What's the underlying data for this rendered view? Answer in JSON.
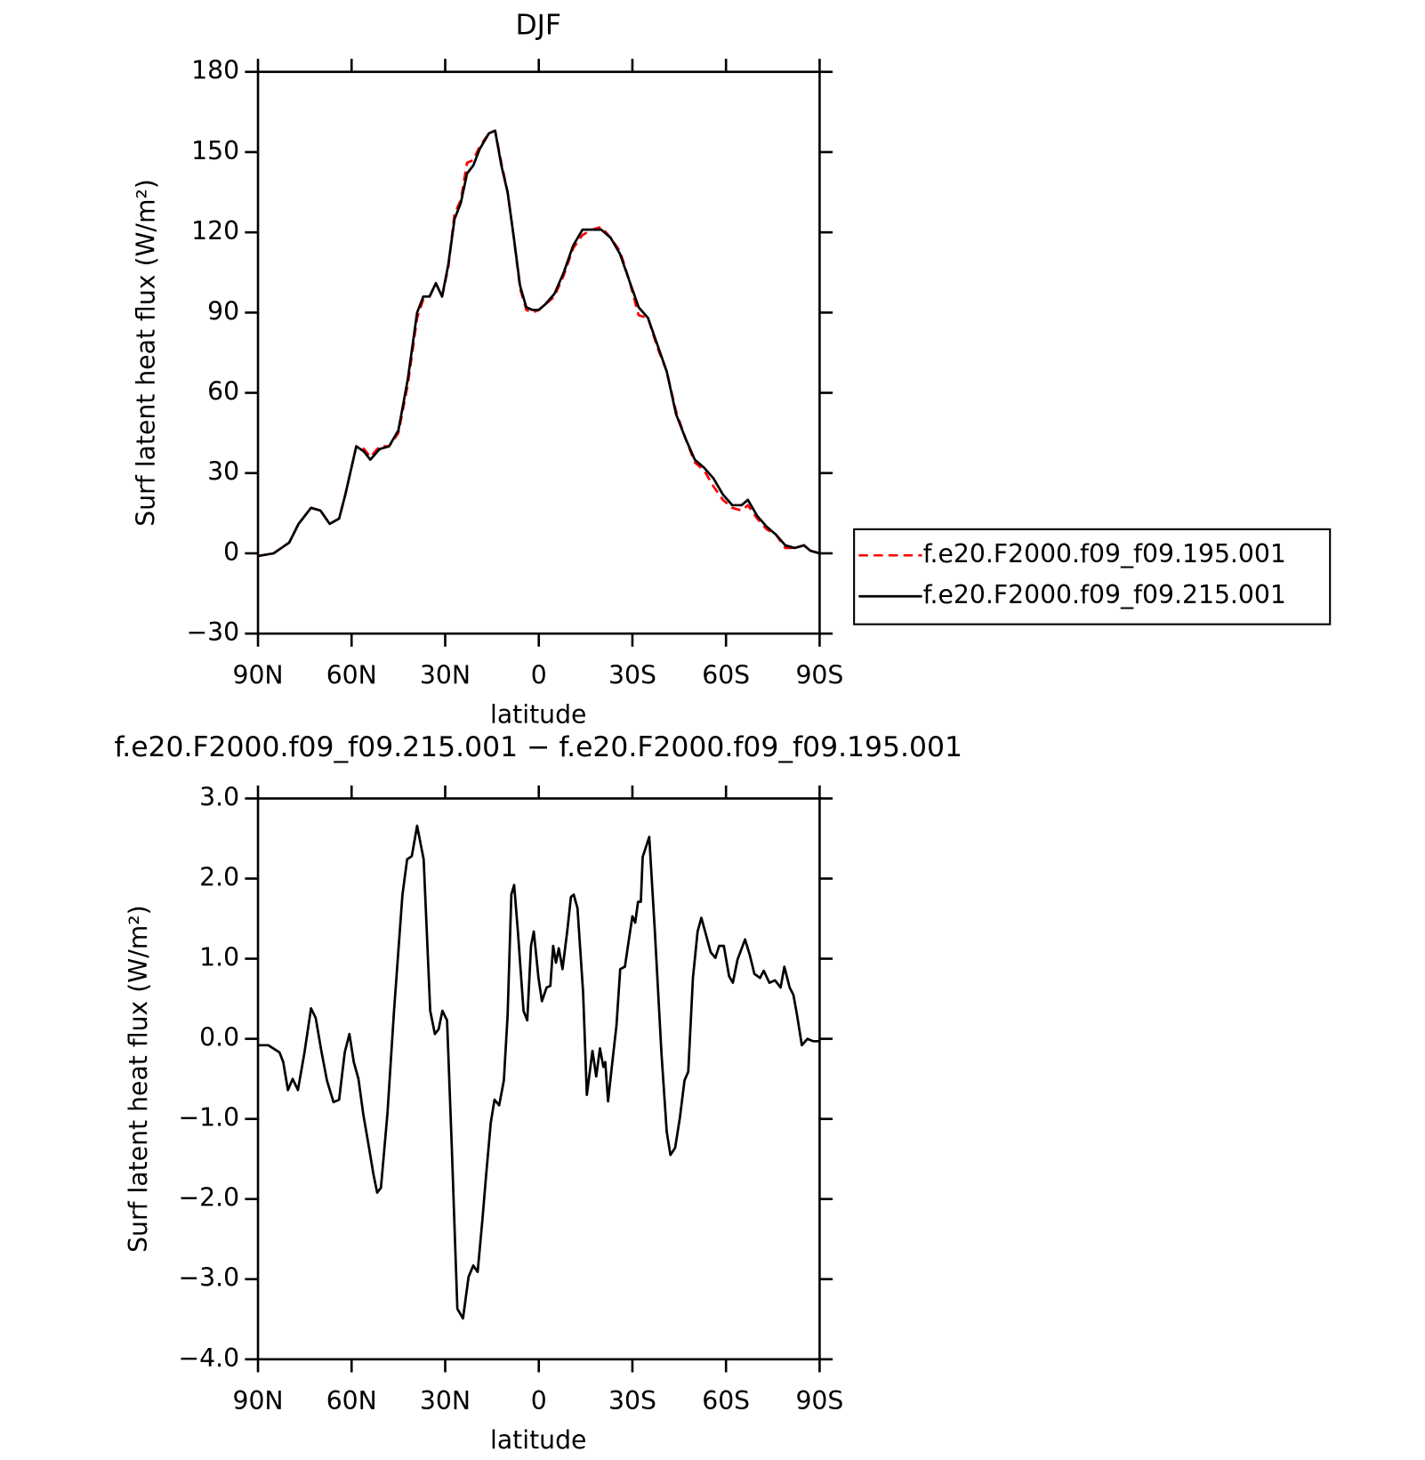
{
  "chart_data": [
    {
      "type": "line",
      "title": "DJF",
      "xlabel": "latitude",
      "ylabel": "Surf latent heat flux (W/m²)",
      "x": [
        90,
        85,
        80,
        77,
        73,
        70,
        67,
        64,
        62,
        58.5,
        56,
        54,
        51,
        48,
        45,
        42,
        39,
        37,
        35,
        33,
        31,
        29,
        27,
        25,
        23,
        21,
        19,
        16,
        14,
        12,
        10,
        8,
        6,
        4,
        2,
        0,
        -2,
        -5,
        -8,
        -11,
        -14,
        -17,
        -20,
        -23,
        -26,
        -29,
        -32,
        -35,
        -38,
        -41,
        -44,
        -47,
        -50,
        -53,
        -56,
        -59,
        -62,
        -65,
        -67,
        -70,
        -73,
        -76,
        -79,
        -82,
        -85,
        -87,
        -90
      ],
      "series": [
        {
          "name": "f.e20.F2000.f09_f09.195.001",
          "color": "#ff0000",
          "line_style": "dashed",
          "values": [
            -1,
            0,
            4,
            11,
            17,
            16,
            11,
            13,
            22,
            40,
            39,
            36,
            40,
            40,
            45,
            63,
            88,
            95,
            96,
            101,
            96,
            107,
            127,
            132,
            146,
            147,
            152,
            157,
            158,
            146,
            135,
            118,
            99,
            91,
            90,
            91,
            93,
            96,
            104,
            114,
            119,
            121,
            122,
            118,
            113,
            102,
            89,
            88,
            77,
            68,
            53,
            43,
            34,
            31,
            25,
            20,
            17,
            16,
            18,
            13,
            9,
            7,
            2,
            2,
            3,
            1,
            0
          ]
        },
        {
          "name": "f.e20.F2000.f09_f09.215.001",
          "color": "#000000",
          "line_style": "solid",
          "values": [
            -1,
            0,
            4,
            11,
            17,
            16,
            11,
            13,
            22,
            40,
            38,
            35,
            39,
            40,
            46,
            65,
            90,
            96,
            96,
            101,
            96,
            108,
            125,
            131,
            142,
            145,
            151,
            157,
            158,
            145,
            135,
            118,
            100,
            92,
            91,
            91,
            93,
            97,
            105,
            115,
            121,
            121,
            121,
            118,
            112,
            102,
            92,
            88,
            78,
            68,
            52,
            43,
            35,
            32,
            28,
            22,
            18,
            18,
            20,
            14,
            10,
            7,
            3,
            2,
            3,
            1,
            0
          ]
        }
      ],
      "xlim": [
        90,
        -90
      ],
      "xticks": [
        {
          "value": 90,
          "label": "90N"
        },
        {
          "value": 60,
          "label": "60N"
        },
        {
          "value": 30,
          "label": "30N"
        },
        0,
        {
          "value": -30,
          "label": "30S"
        },
        {
          "value": -60,
          "label": "60S"
        },
        {
          "value": -90,
          "label": "90S"
        }
      ],
      "ylim": [
        -30,
        180
      ],
      "yticks": [
        {
          "value": -30,
          "label": "−30"
        },
        0,
        30,
        60,
        90,
        120,
        150,
        180
      ],
      "legend": "right"
    },
    {
      "type": "line",
      "title": "f.e20.F2000.f09_f09.215.001 − f.e20.F2000.f09_f09.195.001",
      "xlabel": "latitude",
      "ylabel": "Surf latent heat flux (W/m²)",
      "x": [
        90,
        86.7,
        83.1,
        81.9,
        80.4,
        78.9,
        77.2,
        75.1,
        73,
        71.5,
        69.7,
        67.9,
        65.8,
        64,
        62.2,
        60.7,
        59.3,
        57.8,
        56.3,
        54.5,
        53,
        51.8,
        50.6,
        48.5,
        46.4,
        43.7,
        42.2,
        40.7,
        39,
        36.9,
        34.8,
        33.3,
        32.1,
        30.9,
        29.4,
        27.9,
        26.1,
        24.3,
        22.5,
        21,
        19.6,
        18.1,
        16.9,
        15.4,
        14.2,
        12.7,
        11.2,
        10,
        8.8,
        7.9,
        6.7,
        4.9,
        3.7,
        2.5,
        1.6,
        0.1,
        -1,
        -2.5,
        -3.7,
        -4.6,
        -5.5,
        -6.4,
        -7.6,
        -9.1,
        -10.3,
        -11.2,
        -12.4,
        -14.2,
        -15.4,
        -17.2,
        -18.4,
        -19.6,
        -20.7,
        -21.3,
        -22.2,
        -23.4,
        -24.9,
        -26.1,
        -27.6,
        -28.8,
        -30,
        -30.9,
        -31.8,
        -32.7,
        -33.3,
        -35.4,
        -37.2,
        -39.3,
        -41,
        -42.2,
        -43.7,
        -45.2,
        -46.7,
        -47.9,
        -49.4,
        -50.9,
        -52.1,
        -53.3,
        -55.1,
        -56.6,
        -57.8,
        -59.3,
        -61,
        -62.2,
        -63.7,
        -66.1,
        -67.6,
        -69.1,
        -70.9,
        -72.1,
        -73.9,
        -75.7,
        -77.5,
        -78.7,
        -80.4,
        -81.6,
        -82.8,
        -84.3,
        -86.1,
        -87.9,
        -90
      ],
      "series": [
        {
          "name": null,
          "color": "#000000",
          "line_style": "solid",
          "values": [
            -0.08,
            -0.08,
            -0.17,
            -0.29,
            -0.64,
            -0.5,
            -0.64,
            -0.17,
            0.38,
            0.26,
            -0.15,
            -0.52,
            -0.79,
            -0.76,
            -0.17,
            0.06,
            -0.29,
            -0.5,
            -0.93,
            -1.34,
            -1.69,
            -1.92,
            -1.86,
            -0.93,
            0.35,
            1.8,
            2.24,
            2.28,
            2.66,
            2.24,
            0.35,
            0.06,
            0.12,
            0.35,
            0.23,
            -1.34,
            -3.37,
            -3.49,
            -2.97,
            -2.83,
            -2.91,
            -2.27,
            -1.71,
            -1.05,
            -0.76,
            -0.83,
            -0.52,
            0.29,
            1.8,
            1.92,
            1.34,
            0.35,
            0.23,
            1.16,
            1.34,
            0.76,
            0.47,
            0.64,
            0.66,
            1.16,
            0.95,
            1.13,
            0.87,
            1.34,
            1.77,
            1.8,
            1.63,
            0.58,
            -0.7,
            -0.15,
            -0.47,
            -0.12,
            -0.35,
            -0.29,
            -0.78,
            -0.35,
            0.17,
            0.87,
            0.9,
            1.22,
            1.53,
            1.45,
            1.71,
            1.71,
            2.27,
            2.52,
            1.34,
            -0.17,
            -1.16,
            -1.45,
            -1.36,
            -0.99,
            -0.52,
            -0.41,
            0.76,
            1.34,
            1.51,
            1.34,
            1.08,
            1.01,
            1.16,
            1.16,
            0.78,
            0.7,
            0.99,
            1.24,
            1.05,
            0.81,
            0.76,
            0.85,
            0.7,
            0.73,
            0.64,
            0.9,
            0.64,
            0.55,
            0.29,
            -0.08,
            0,
            -0.03,
            -0.03
          ]
        }
      ],
      "xlim": [
        90,
        -90
      ],
      "xticks": [
        {
          "value": 90,
          "label": "90N"
        },
        {
          "value": 60,
          "label": "60N"
        },
        {
          "value": 30,
          "label": "30N"
        },
        0,
        {
          "value": -30,
          "label": "30S"
        },
        {
          "value": -60,
          "label": "60S"
        },
        {
          "value": -90,
          "label": "90S"
        }
      ],
      "ylim": [
        -4,
        3
      ],
      "yticks": [
        {
          "value": -4,
          "label": "−4.0"
        },
        {
          "value": -3,
          "label": "−3.0"
        },
        {
          "value": -2,
          "label": "−2.0"
        },
        {
          "value": -1,
          "label": "−1.0"
        },
        {
          "value": 0,
          "label": "0.0"
        },
        {
          "value": 1,
          "label": "1.0"
        },
        {
          "value": 2,
          "label": "2.0"
        },
        {
          "value": 3,
          "label": "3.0"
        }
      ]
    }
  ]
}
